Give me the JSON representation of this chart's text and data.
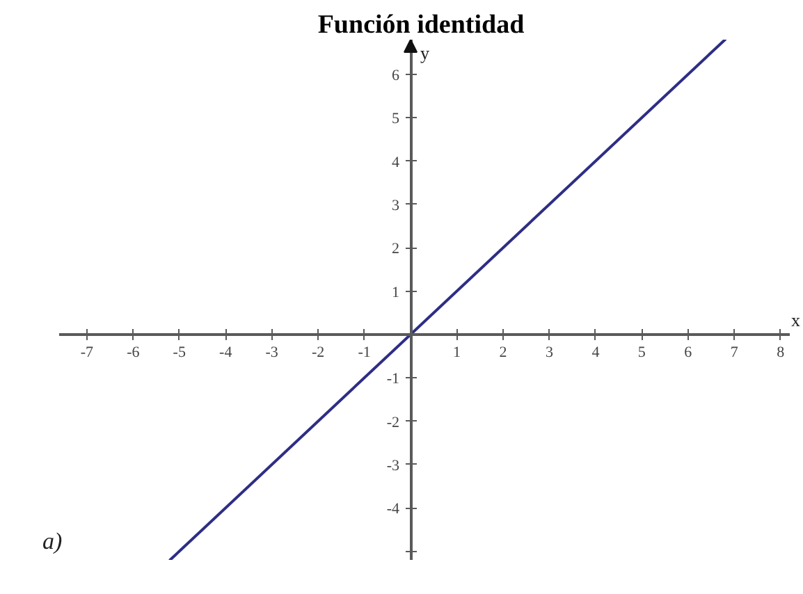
{
  "chart_data": {
    "type": "line",
    "title": "Función identidad",
    "xlabel": "x",
    "ylabel": "y",
    "annotations": [
      "a)"
    ],
    "x": [
      -5.2,
      6.8
    ],
    "series": [
      {
        "color": "#2e2e86",
        "values": [
          -5.2,
          6.8
        ]
      }
    ],
    "xlim": [
      -7.6,
      8.2
    ],
    "ylim": [
      -5.2,
      6.8
    ],
    "xticks": [
      -7,
      -6,
      -5,
      -4,
      -3,
      -2,
      -1,
      1,
      2,
      3,
      4,
      5,
      6,
      7,
      8
    ],
    "yticks": [
      {
        "value": -5,
        "label": null
      },
      -4,
      -3,
      -2,
      -1,
      1,
      2,
      3,
      4,
      5,
      6
    ],
    "grid": false
  }
}
